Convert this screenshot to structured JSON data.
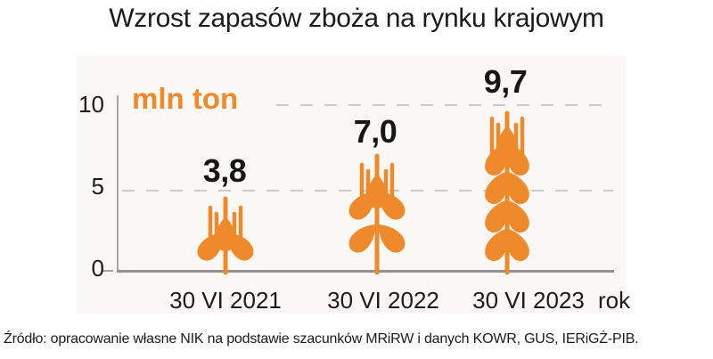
{
  "title": "Wzrost zapasów zboża na rynku krajowym",
  "source": "Źródło: opracowanie własne NIK na podstawie szacunków MRiRW i danych KOWR, GUS, IERiGŻ-PIB.",
  "chart_data": {
    "type": "bar",
    "subtype": "pictogram-wheat-ears",
    "title": "Wzrost zapasów zboża na rynku krajowym",
    "unit_label": "mln ton",
    "x_axis_label": "rok",
    "categories": [
      "30 VI 2021",
      "30 VI 2022",
      "30 VI 2023"
    ],
    "values": [
      3.8,
      7.0,
      9.7
    ],
    "value_labels": [
      "3,8",
      "7,0",
      "9,7"
    ],
    "y_ticks": [
      "0",
      "5",
      "10"
    ],
    "ylim": [
      0,
      10.8
    ],
    "grid": "dashed horizontal gridlines at y=5 and y=10",
    "legend": "none",
    "icons": [
      "wheat-ear-small-icon",
      "wheat-ear-medium-icon",
      "wheat-ear-large-icon"
    ],
    "colors": {
      "accent_orange": "#EE8A2B",
      "text": "#1B1B1B",
      "axis": "#9B9B9B",
      "gridline": "#CBCBCB",
      "panel_background": "#F9F8F5",
      "page_background": "#FFFFFF"
    }
  }
}
